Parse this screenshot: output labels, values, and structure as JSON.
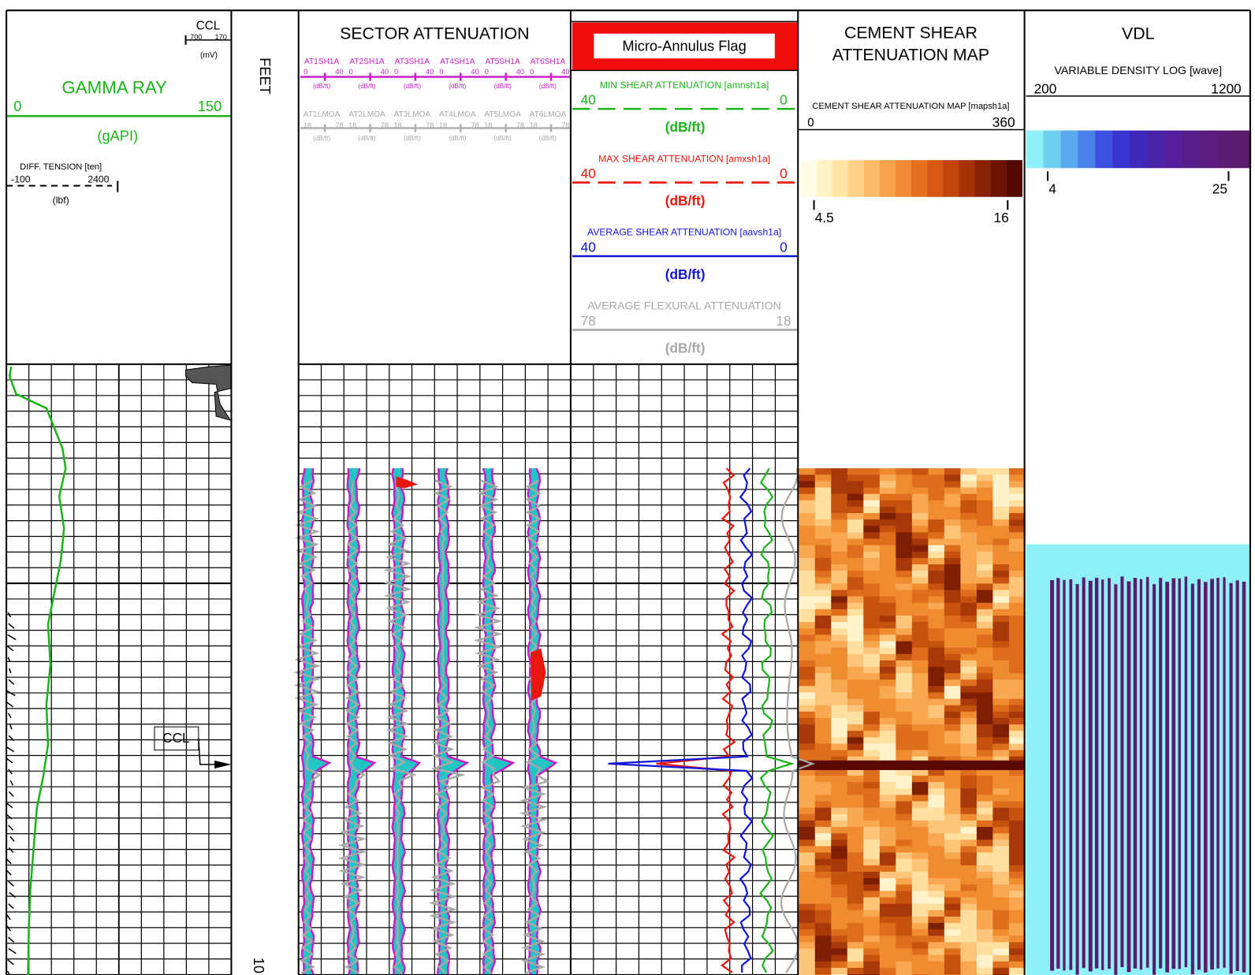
{
  "gamma_track": {
    "ccl_label": "CCL",
    "ccl_min": 700,
    "ccl_max": 170,
    "ccl_unit": "(mV)",
    "title": "GAMMA RAY",
    "gr_min": 0,
    "gr_max": 150,
    "gr_unit": "(gAPI)",
    "tension_label": "DIFF. TENSION [ten]",
    "tension_min": -100,
    "tension_max": 2400,
    "tension_unit": "(lbf)",
    "ccl_flag": "CCL"
  },
  "depth_track": {
    "unit": "FEET",
    "depth_label": 10
  },
  "sector_track": {
    "title": "SECTOR ATTENUATION",
    "shear_curves": [
      "AT1SH1A",
      "AT2SH1A",
      "AT3SH1A",
      "AT4SH1A",
      "AT5SH1A",
      "AT6SH1A"
    ],
    "shear_min": 0,
    "shear_max": 40,
    "shear_unit": "(dB/ft)",
    "flexural_curves": [
      "AT1LMOA",
      "AT2LMOA",
      "AT3LMOA",
      "AT4LMOA",
      "AT5LMOA",
      "AT6LMOA"
    ],
    "flexural_min": 18,
    "flexural_max": 78,
    "flexural_unit": "(dB/ft)"
  },
  "micro_track": {
    "flag": "Micro-Annulus Flag",
    "curves": [
      {
        "name": "MIN SHEAR ATTENUATION [amnsh1a]",
        "left": 40,
        "right": 0,
        "unit": "(dB/ft)",
        "color": "#1db31d"
      },
      {
        "name": "MAX SHEAR ATTENUATION [amxsh1a]",
        "left": 40,
        "right": 0,
        "unit": "(dB/ft)",
        "color": "#e8160c"
      },
      {
        "name": "AVERAGE SHEAR ATTENUATION [aavsh1a]",
        "left": 40,
        "right": 0,
        "unit": "(dB/ft)",
        "color": "#1414d8"
      },
      {
        "name": "AVERAGE FLEXURAL ATTENUATION",
        "left": 78,
        "right": 18,
        "unit": "(dB/ft)",
        "color": "#a8a8a8"
      }
    ]
  },
  "map_track": {
    "title_lines": [
      "CEMENT SHEAR",
      "ATTENUATION MAP"
    ],
    "curve": "CEMENT SHEAR ATTENUATION MAP [mapsh1a]",
    "min": 0,
    "max": 360,
    "scale_min": 4.5,
    "scale_max": 16
  },
  "vdl_track": {
    "title": "VDL",
    "curve": "VARIABLE DENSITY LOG [wave]",
    "min": 200,
    "max": 1200,
    "scale_min": 4,
    "scale_max": 25
  }
}
